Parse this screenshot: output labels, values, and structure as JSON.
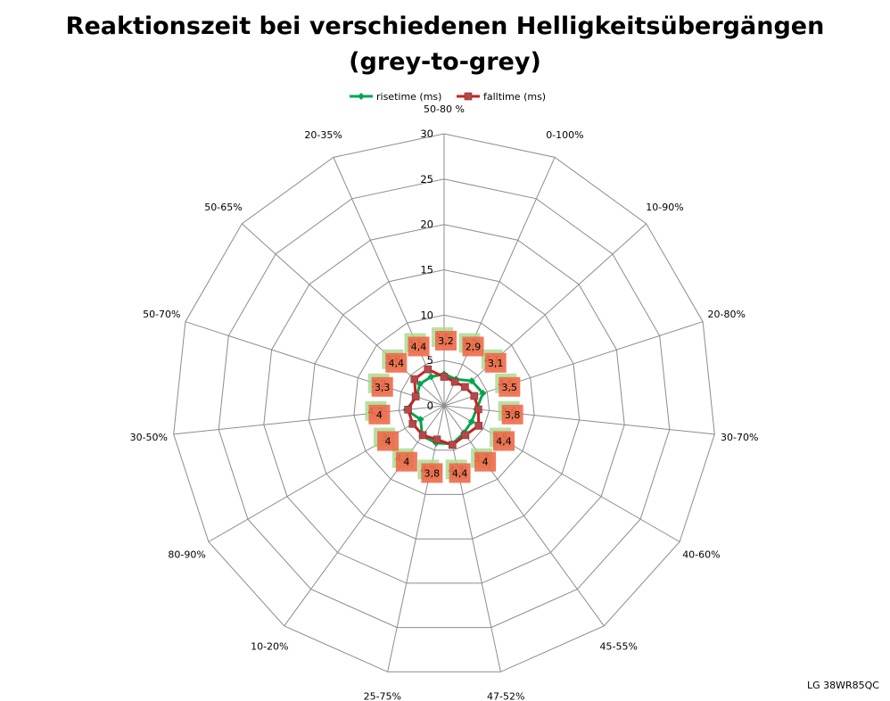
{
  "chart_data": {
    "type": "radar",
    "title_line1": "Reaktionszeit bei verschiedenen Helligkeitsübergängen",
    "title_line2": "(grey-to-grey)",
    "categories": [
      "50-80 %",
      "0-100%",
      "10-90%",
      "20-80%",
      "30-70%",
      "40-60%",
      "45-55%",
      "47-52%",
      "25-75%",
      "10-20%",
      "80-90%",
      "30-50%",
      "50-70%",
      "50-65%",
      "20-35%"
    ],
    "r_ticks": [
      0,
      5,
      10,
      15,
      20,
      25,
      30
    ],
    "rlim": [
      0,
      30
    ],
    "grid": true,
    "legend_position": "top",
    "series": [
      {
        "name": "risetime (ms)",
        "color": "#00A650",
        "marker": "diamond",
        "values": [
          3.5,
          3.2,
          4.1,
          4.5,
          3.6,
          3.5,
          3.7,
          4.3,
          4.2,
          4.1,
          3.0,
          4.2,
          3.2,
          3.6,
          3.5
        ],
        "labels": [
          "3,5",
          "3,2",
          "4,1",
          "4,5",
          "3,6",
          "3,5",
          "3,7",
          "4,3",
          "4,2",
          "4,1",
          "3",
          "4,2",
          "3,2",
          "3,6",
          "3,5"
        ]
      },
      {
        "name": "falltime (ms)",
        "color": "#CC2020",
        "marker": "square",
        "values": [
          3.2,
          2.9,
          3.1,
          3.5,
          3.8,
          4.4,
          4.0,
          4.4,
          3.8,
          4.0,
          4.0,
          4.0,
          3.3,
          4.4,
          4.4
        ],
        "labels": [
          "3,2",
          "2,9",
          "3,1",
          "3,5",
          "3,8",
          "4,4",
          "4",
          "4,4",
          "3,8",
          "4",
          "4",
          "4",
          "3,3",
          "4,4",
          "4,4"
        ]
      }
    ]
  },
  "footer": {
    "brand": "LG 38WR85QC"
  }
}
